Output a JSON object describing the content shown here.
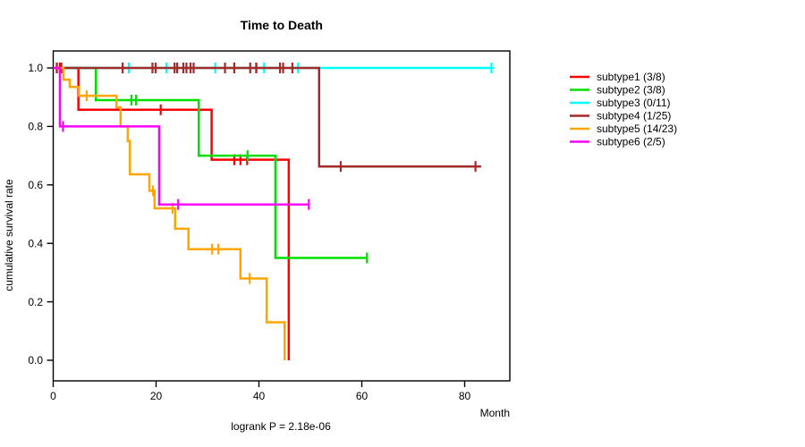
{
  "title": "Time to Death",
  "footnote": "logrank P = 2.18e-06",
  "chart_data": {
    "type": "line",
    "subtype": "kaplan-meier-step-curves",
    "title": "Time to Death",
    "xlabel": "Month",
    "ylabel": "cumulative survival rate",
    "annotation": "logrank P = 2.18e-06",
    "xlim": [
      0,
      88.8
    ],
    "ylim": [
      0.0,
      1.0
    ],
    "grid": false,
    "legend_position": "right-outside",
    "x_ticks": [
      0,
      20,
      40,
      60,
      80
    ],
    "x_tick_labels": [
      "0",
      "20",
      "40",
      "60",
      "80"
    ],
    "y_ticks": [
      0.0,
      0.2,
      0.4,
      0.6,
      0.8,
      1.0
    ],
    "y_tick_labels": [
      "0.0",
      "0.2",
      "0.4",
      "0.6",
      "0.8",
      "1.0"
    ],
    "series": [
      {
        "name": "subtype1 (3/8)",
        "id": "subtype1",
        "color": "#FF0000",
        "steps": [
          [
            0,
            1.0
          ],
          [
            4.9,
            0.857
          ],
          [
            30.8,
            0.686
          ],
          [
            45.8,
            0.0
          ]
        ],
        "end_month": 45.8,
        "censors": [
          [
            0.7,
            1.0
          ],
          [
            1.3,
            1.0
          ],
          [
            20.9,
            0.857
          ],
          [
            35.2,
            0.686
          ],
          [
            36.4,
            0.686
          ],
          [
            37.7,
            0.686
          ]
        ]
      },
      {
        "name": "subtype2 (3/8)",
        "id": "subtype2",
        "color": "#00E000",
        "steps": [
          [
            0,
            1.0
          ],
          [
            8.3,
            0.89
          ],
          [
            28.3,
            0.7
          ],
          [
            43.2,
            0.35
          ]
        ],
        "end_month": 61.0,
        "censors": [
          [
            15.2,
            0.89
          ],
          [
            16.1,
            0.89
          ],
          [
            37.8,
            0.7
          ],
          [
            61.0,
            0.35
          ]
        ]
      },
      {
        "name": "subtype3 (0/11)",
        "id": "subtype3",
        "color": "#00FFFF",
        "steps": [
          [
            0,
            1.0
          ]
        ],
        "end_month": 85.7,
        "censors": [
          [
            14.7,
            1.0
          ],
          [
            22.0,
            1.0
          ],
          [
            31.5,
            1.0
          ],
          [
            39.4,
            1.0
          ],
          [
            41.0,
            1.0
          ],
          [
            47.6,
            1.0
          ],
          [
            85.2,
            1.0
          ]
        ]
      },
      {
        "name": "subtype4 (1/25)",
        "id": "subtype4",
        "color": "#A52A2A",
        "steps": [
          [
            0,
            1.0
          ],
          [
            51.7,
            0.663
          ]
        ],
        "end_month": 83.2,
        "censors": [
          [
            0.7,
            1.0
          ],
          [
            1.6,
            1.0
          ],
          [
            13.5,
            1.0
          ],
          [
            19.3,
            1.0
          ],
          [
            19.9,
            1.0
          ],
          [
            23.6,
            1.0
          ],
          [
            24.1,
            1.0
          ],
          [
            25.3,
            1.0
          ],
          [
            25.9,
            1.0
          ],
          [
            26.7,
            1.0
          ],
          [
            27.3,
            1.0
          ],
          [
            33.4,
            1.0
          ],
          [
            35.2,
            1.0
          ],
          [
            38.3,
            1.0
          ],
          [
            39.5,
            1.0
          ],
          [
            44.1,
            1.0
          ],
          [
            44.7,
            1.0
          ],
          [
            46.5,
            1.0
          ],
          [
            55.9,
            0.663
          ],
          [
            82.1,
            0.663
          ]
        ]
      },
      {
        "name": "subtype5 (14/23)",
        "id": "subtype5",
        "color": "#FFA500",
        "steps": [
          [
            0,
            1.0
          ],
          [
            2.0,
            0.96
          ],
          [
            3.2,
            0.935
          ],
          [
            5.0,
            0.905
          ],
          [
            12.3,
            0.865
          ],
          [
            13.1,
            0.8
          ],
          [
            14.5,
            0.75
          ],
          [
            14.9,
            0.636
          ],
          [
            18.7,
            0.58
          ],
          [
            19.7,
            0.52
          ],
          [
            23.7,
            0.45
          ],
          [
            26.3,
            0.38
          ],
          [
            36.4,
            0.28
          ],
          [
            41.5,
            0.13
          ],
          [
            45.0,
            0.0
          ]
        ],
        "end_month": 45.0,
        "censors": [
          [
            6.5,
            0.905
          ],
          [
            19.4,
            0.58
          ],
          [
            23.2,
            0.52
          ],
          [
            30.9,
            0.38
          ],
          [
            32.1,
            0.38
          ],
          [
            38.2,
            0.28
          ]
        ]
      },
      {
        "name": "subtype6 (2/5)",
        "id": "subtype6",
        "color": "#FF00FF",
        "steps": [
          [
            0,
            1.0
          ],
          [
            1.3,
            0.8
          ],
          [
            20.6,
            0.533
          ]
        ],
        "end_month": 49.7,
        "censors": [
          [
            1.9,
            0.8
          ],
          [
            24.3,
            0.533
          ],
          [
            49.7,
            0.533
          ]
        ]
      }
    ]
  }
}
